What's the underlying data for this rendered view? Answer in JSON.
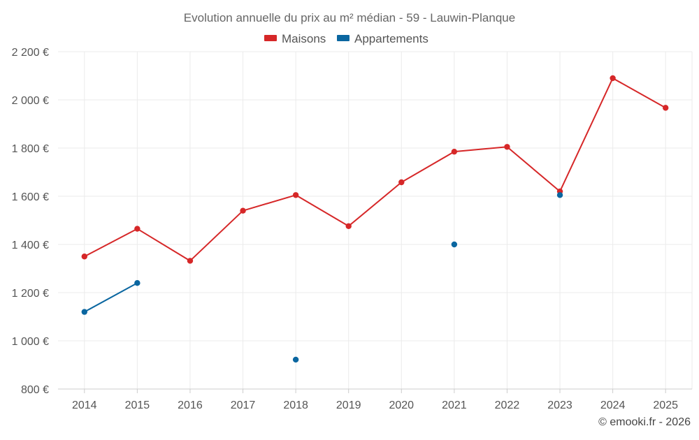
{
  "chart_data": {
    "type": "line",
    "title": "Evolution annuelle du prix au m² médian - 59 - Lauwin-Planque",
    "categories": [
      "2014",
      "2015",
      "2016",
      "2017",
      "2018",
      "2019",
      "2020",
      "2021",
      "2022",
      "2023",
      "2024",
      "2025"
    ],
    "series": [
      {
        "name": "Maisons",
        "color": "#d62728",
        "values": [
          1350,
          1465,
          1332,
          1540,
          1605,
          1476,
          1658,
          1785,
          1805,
          1620,
          2090,
          1967
        ]
      },
      {
        "name": "Appartements",
        "color": "#0a66a0",
        "values": [
          1120,
          1240,
          null,
          null,
          922,
          null,
          null,
          1400,
          null,
          1605,
          null,
          null
        ]
      }
    ],
    "xlabel": "",
    "ylabel": "",
    "ylim": [
      800,
      2200
    ],
    "yticks": [
      800,
      1000,
      1200,
      1400,
      1600,
      1800,
      2000,
      2200
    ],
    "ytick_labels": [
      "800 €",
      "1 000 €",
      "1 200 €",
      "1 400 €",
      "1 600 €",
      "1 800 €",
      "2 000 €",
      "2 200 €"
    ],
    "grid": true,
    "legend_position": "top-center"
  },
  "credit": "© emooki.fr - 2026"
}
